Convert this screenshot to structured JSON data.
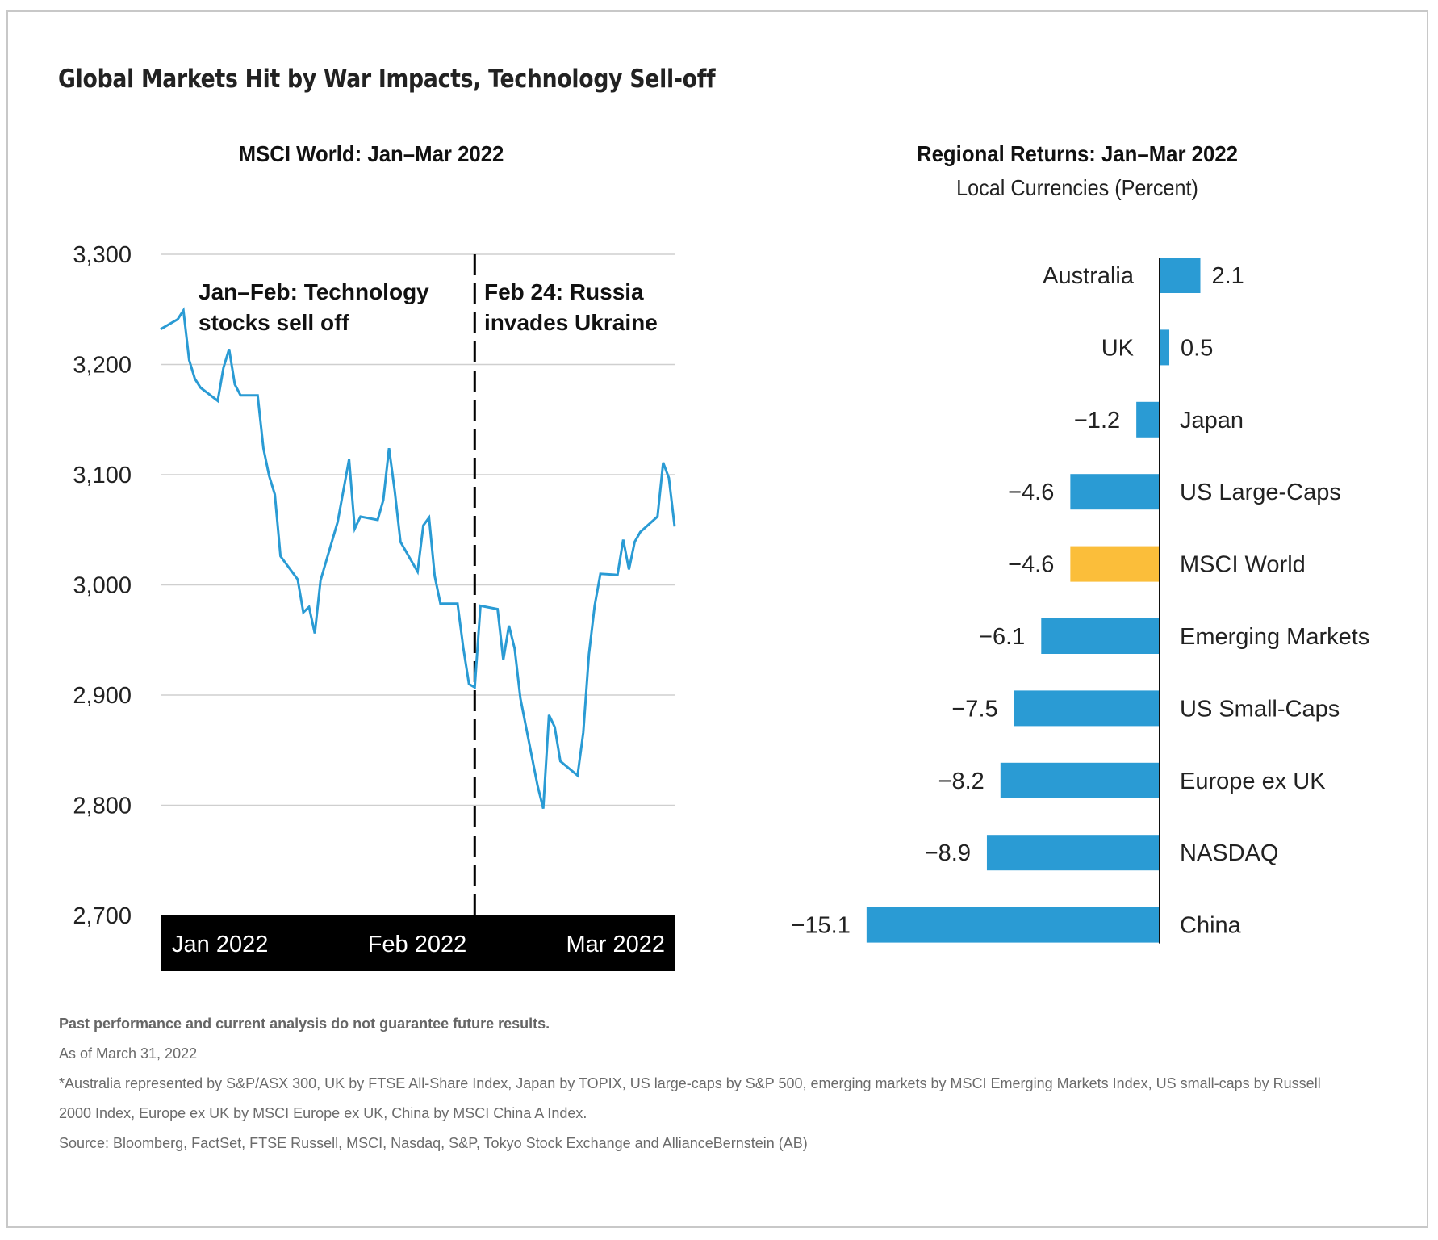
{
  "title": "Global Markets Hit by War Impacts, Technology Sell-off",
  "colors": {
    "line": "#2a9bd4",
    "bar": "#2a9bd4",
    "highlight_bar": "#fbbe3a",
    "axis_band": "#000000",
    "gridline": "#cfcfcf",
    "frame": "#c8c8c8"
  },
  "chart_data": [
    {
      "type": "line",
      "title": "MSCI World: Jan–Mar 2022",
      "xlabel": "",
      "ylabel": "",
      "ylim": [
        2700,
        3300
      ],
      "yticks": [
        3300,
        3200,
        3100,
        3000,
        2900,
        2800,
        2700
      ],
      "ytick_labels": [
        "3,300",
        "3,200",
        "3,100",
        "3,000",
        "2,900",
        "2,800",
        "2,700"
      ],
      "xtick_labels": [
        "Jan 2022",
        "Feb 2022",
        "Mar 2022"
      ],
      "grid": true,
      "x_domain": [
        0,
        63
      ],
      "series": [
        {
          "name": "MSCI World",
          "x": [
            0,
            3,
            4,
            5,
            6,
            7,
            10,
            11,
            12,
            13,
            14,
            17,
            18,
            19,
            20,
            21,
            24,
            25,
            26,
            27,
            28,
            31,
            33,
            34,
            35,
            38,
            39,
            40,
            41,
            42,
            45,
            46,
            47,
            48,
            49,
            52,
            53,
            54,
            55,
            56,
            59,
            60,
            61,
            62,
            63,
            66,
            67,
            68,
            69,
            70,
            73,
            74,
            75,
            76,
            77,
            80,
            81,
            82,
            83,
            84,
            87,
            88,
            89,
            90
          ],
          "y": [
            3232,
            3241,
            3249,
            3204,
            3187,
            3179,
            3167,
            3197,
            3214,
            3182,
            3172,
            3172,
            3124,
            3099,
            3082,
            3026,
            3005,
            2975,
            2980,
            2956,
            3004,
            3057,
            3114,
            3051,
            3062,
            3059,
            3077,
            3124,
            3085,
            3039,
            3012,
            3054,
            3061,
            3008,
            2983,
            2983,
            2943,
            2910,
            2907,
            2981,
            2978,
            2932,
            2963,
            2942,
            2897,
            2818,
            2797,
            2882,
            2871,
            2840,
            2827,
            2866,
            2937,
            2981,
            3010,
            3009,
            3041,
            3014,
            3039,
            3048,
            3062,
            3111,
            3097,
            3053
          ]
        }
      ],
      "x_range": [
        0,
        90
      ],
      "annotations": [
        {
          "text_lines": [
            "Jan–Feb: Technology",
            "stocks sell off"
          ],
          "position": "top-left"
        },
        {
          "text_lines": [
            "Feb 24: Russia",
            "invades Ukraine"
          ],
          "position": "top-right",
          "marker": "dashed vertical line",
          "at_x": 55
        }
      ]
    },
    {
      "type": "bar",
      "orientation": "horizontal",
      "title": "Regional Returns: Jan–Mar 2022",
      "subtitle": "Local Currencies (Percent)",
      "categories": [
        "Australia",
        "UK",
        "Japan",
        "US Large-Caps",
        "MSCI World",
        "Emerging Markets",
        "US Small-Caps",
        "Europe ex UK",
        "NASDAQ",
        "China"
      ],
      "values": [
        2.1,
        0.5,
        -1.2,
        -4.6,
        -4.6,
        -6.1,
        -7.5,
        -8.2,
        -8.9,
        -15.1
      ],
      "value_labels": [
        "2.1",
        "0.5",
        "−1.2",
        "−4.6",
        "−4.6",
        "−6.1",
        "−7.5",
        "−8.2",
        "−8.9",
        "−15.1"
      ],
      "highlight": "MSCI World",
      "xlim": [
        -15.1,
        2.1
      ],
      "grid": false
    }
  ],
  "footnotes": {
    "disclaimer": "Past performance and current analysis do not guarantee future results.",
    "as_of": "As of March 31, 2022",
    "note_line1": "*Australia represented by S&P/ASX 300, UK by FTSE All-Share Index, Japan by TOPIX, US large-caps by S&P 500, emerging markets by MSCI Emerging Markets Index, US small-caps by Russell",
    "note_line2": "2000 Index, Europe ex UK by MSCI Europe ex UK, China by MSCI China A Index.",
    "source": "Source: Bloomberg, FactSet, FTSE Russell, MSCI, Nasdaq, S&P, Tokyo Stock Exchange and AllianceBernstein (AB)"
  }
}
